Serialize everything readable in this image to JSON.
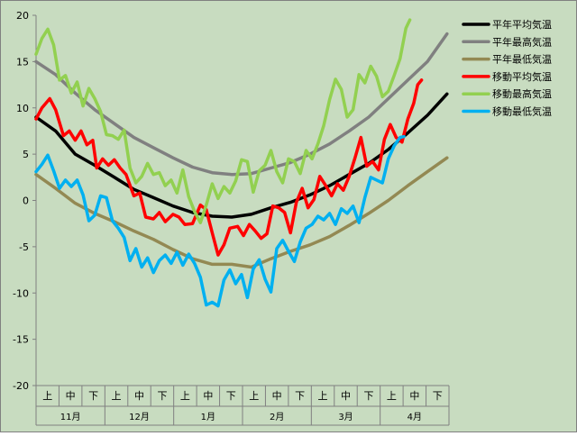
{
  "colors": {
    "page_bg": "#c8dcc0",
    "plot_bg": "#c8dcc0",
    "axis": "#808080"
  },
  "chart_data": {
    "type": "line",
    "title": "",
    "xlabel": "",
    "ylabel": "",
    "ylim": [
      -20,
      20
    ],
    "yticks": [
      -20,
      -15,
      -10,
      -5,
      0,
      5,
      10,
      15,
      20
    ],
    "grid": false,
    "legend_position": "right",
    "x_sub_labels": [
      "上",
      "中",
      "下",
      "上",
      "中",
      "下",
      "上",
      "中",
      "下",
      "上",
      "中",
      "下",
      "上",
      "中",
      "下",
      "上",
      "中",
      "下"
    ],
    "months": [
      "11月",
      "12月",
      "1月",
      "2月",
      "3月",
      "4月"
    ],
    "x_unit": "day index from Nov 1 (0-180)",
    "series": [
      {
        "name": "平年平均気温",
        "color": "#000000",
        "points": [
          [
            0,
            9
          ],
          [
            10,
            7.5
          ],
          [
            20,
            5
          ],
          [
            30,
            3.8
          ],
          [
            40,
            2.5
          ],
          [
            50,
            1.2
          ],
          [
            60,
            0.3
          ],
          [
            70,
            -0.6
          ],
          [
            80,
            -1.3
          ],
          [
            90,
            -1.7
          ],
          [
            100,
            -1.8
          ],
          [
            110,
            -1.5
          ],
          [
            120,
            -0.8
          ],
          [
            130,
            -0.2
          ],
          [
            140,
            0.6
          ],
          [
            150,
            1.6
          ],
          [
            160,
            2.8
          ],
          [
            170,
            4
          ],
          [
            180,
            5.5
          ],
          [
            190,
            7.3
          ],
          [
            200,
            9.2
          ],
          [
            210,
            11.5
          ]
        ]
      },
      {
        "name": "平年最高気温",
        "color": "#808080",
        "points": [
          [
            0,
            15
          ],
          [
            10,
            13.6
          ],
          [
            20,
            11.6
          ],
          [
            30,
            9.8
          ],
          [
            40,
            8.3
          ],
          [
            50,
            6.8
          ],
          [
            60,
            5.7
          ],
          [
            70,
            4.6
          ],
          [
            80,
            3.6
          ],
          [
            90,
            3
          ],
          [
            100,
            2.8
          ],
          [
            110,
            2.9
          ],
          [
            120,
            3.5
          ],
          [
            130,
            4.1
          ],
          [
            140,
            5
          ],
          [
            150,
            6.1
          ],
          [
            160,
            7.5
          ],
          [
            170,
            9
          ],
          [
            180,
            11
          ],
          [
            190,
            13
          ],
          [
            200,
            15
          ],
          [
            210,
            18
          ]
        ]
      },
      {
        "name": "平年最低気温",
        "color": "#938953",
        "points": [
          [
            0,
            2.8
          ],
          [
            10,
            1.3
          ],
          [
            20,
            -0.3
          ],
          [
            30,
            -1.4
          ],
          [
            40,
            -2.3
          ],
          [
            50,
            -3.3
          ],
          [
            60,
            -4.2
          ],
          [
            70,
            -5.3
          ],
          [
            80,
            -6.3
          ],
          [
            90,
            -6.9
          ],
          [
            100,
            -6.9
          ],
          [
            110,
            -7.2
          ],
          [
            120,
            -6.3
          ],
          [
            130,
            -5.5
          ],
          [
            140,
            -4.8
          ],
          [
            150,
            -3.9
          ],
          [
            160,
            -2.7
          ],
          [
            170,
            -1.4
          ],
          [
            180,
            0
          ],
          [
            190,
            1.6
          ],
          [
            200,
            3.1
          ],
          [
            210,
            4.6
          ]
        ]
      },
      {
        "name": "移動平均気温",
        "color": "#ff0000",
        "points": [
          [
            0,
            8.8
          ],
          [
            3,
            10
          ],
          [
            7,
            11
          ],
          [
            10,
            9.8
          ],
          [
            14,
            7
          ],
          [
            17,
            7.5
          ],
          [
            20,
            6.5
          ],
          [
            23,
            7.5
          ],
          [
            26,
            6
          ],
          [
            29,
            6.5
          ],
          [
            31,
            3.5
          ],
          [
            34,
            4.5
          ],
          [
            37,
            3.8
          ],
          [
            40,
            4.4
          ],
          [
            43,
            3.5
          ],
          [
            46,
            2.8
          ],
          [
            50,
            0.5
          ],
          [
            53,
            0.8
          ],
          [
            56,
            -1.8
          ],
          [
            60,
            -2
          ],
          [
            63,
            -1.3
          ],
          [
            66,
            -2.3
          ],
          [
            70,
            -1.5
          ],
          [
            73,
            -1.8
          ],
          [
            76,
            -2.6
          ],
          [
            80,
            -2.5
          ],
          [
            84,
            -0.5
          ],
          [
            87,
            -1
          ],
          [
            90,
            -3.5
          ],
          [
            93,
            -5.9
          ],
          [
            96,
            -4.8
          ],
          [
            99,
            -3
          ],
          [
            103,
            -2.8
          ],
          [
            106,
            -3.8
          ],
          [
            109,
            -2.6
          ],
          [
            112,
            -3.3
          ],
          [
            115,
            -4.1
          ],
          [
            118,
            -3.6
          ],
          [
            121,
            -0.6
          ],
          [
            124,
            -0.8
          ],
          [
            127,
            -1.3
          ],
          [
            130,
            -3.5
          ],
          [
            133,
            -0.2
          ],
          [
            136,
            1.3
          ],
          [
            139,
            -0.8
          ],
          [
            142,
            0.1
          ],
          [
            145,
            2.6
          ],
          [
            148,
            1.6
          ],
          [
            151,
            0.5
          ],
          [
            154,
            1.8
          ],
          [
            157,
            1.1
          ],
          [
            160,
            2.6
          ],
          [
            163,
            4.6
          ],
          [
            166,
            6.8
          ],
          [
            169,
            3.7
          ],
          [
            172,
            4.2
          ],
          [
            175,
            3.3
          ],
          [
            178,
            6.6
          ],
          [
            181,
            8.2
          ],
          [
            184,
            6.8
          ],
          [
            187,
            6.3
          ],
          [
            190,
            8.8
          ],
          [
            193,
            10.5
          ],
          [
            195,
            12.5
          ],
          [
            197,
            13
          ]
        ]
      },
      {
        "name": "移動最高気温",
        "color": "#92d050",
        "points": [
          [
            0,
            15.8
          ],
          [
            3,
            17.5
          ],
          [
            6,
            18.5
          ],
          [
            9,
            16.8
          ],
          [
            12,
            13
          ],
          [
            15,
            13.5
          ],
          [
            18,
            11.6
          ],
          [
            21,
            12.8
          ],
          [
            24,
            10.2
          ],
          [
            27,
            12.1
          ],
          [
            30,
            11
          ],
          [
            33,
            9.6
          ],
          [
            36,
            7.1
          ],
          [
            39,
            7
          ],
          [
            42,
            6.6
          ],
          [
            45,
            7.6
          ],
          [
            48,
            3.5
          ],
          [
            51,
            1.9
          ],
          [
            54,
            2.6
          ],
          [
            57,
            4
          ],
          [
            60,
            2.8
          ],
          [
            63,
            3
          ],
          [
            66,
            1.6
          ],
          [
            69,
            2.2
          ],
          [
            72,
            0.8
          ],
          [
            75,
            3.3
          ],
          [
            78,
            0.4
          ],
          [
            81,
            -1.2
          ],
          [
            84,
            -2.4
          ],
          [
            87,
            -0.5
          ],
          [
            90,
            1.8
          ],
          [
            93,
            0.2
          ],
          [
            96,
            1.5
          ],
          [
            99,
            0.8
          ],
          [
            102,
            2.1
          ],
          [
            105,
            4.4
          ],
          [
            108,
            4.2
          ],
          [
            111,
            0.9
          ],
          [
            114,
            3.2
          ],
          [
            117,
            3.8
          ],
          [
            120,
            5.4
          ],
          [
            123,
            3.1
          ],
          [
            126,
            1.9
          ],
          [
            129,
            4.5
          ],
          [
            132,
            4.2
          ],
          [
            135,
            2.9
          ],
          [
            138,
            5.4
          ],
          [
            141,
            4.5
          ],
          [
            144,
            6.1
          ],
          [
            147,
            8.1
          ],
          [
            150,
            10.9
          ],
          [
            153,
            13.1
          ],
          [
            156,
            12
          ],
          [
            159,
            9
          ],
          [
            162,
            9.8
          ],
          [
            165,
            13.6
          ],
          [
            168,
            12.7
          ],
          [
            171,
            14.5
          ],
          [
            174,
            13.4
          ],
          [
            177,
            11.2
          ],
          [
            180,
            11.8
          ],
          [
            183,
            13.5
          ],
          [
            186,
            15.3
          ],
          [
            189,
            18.6
          ],
          [
            191,
            19.5
          ]
        ]
      },
      {
        "name": "移動最低気温",
        "color": "#00b0f0",
        "points": [
          [
            0,
            3.1
          ],
          [
            3,
            3.9
          ],
          [
            6,
            4.9
          ],
          [
            9,
            3.2
          ],
          [
            12,
            1.3
          ],
          [
            15,
            2.2
          ],
          [
            18,
            1.5
          ],
          [
            21,
            2.2
          ],
          [
            24,
            0.6
          ],
          [
            27,
            -2.2
          ],
          [
            30,
            -1.6
          ],
          [
            33,
            0.5
          ],
          [
            36,
            0.3
          ],
          [
            39,
            -2.2
          ],
          [
            42,
            -3
          ],
          [
            45,
            -4
          ],
          [
            48,
            -6.5
          ],
          [
            51,
            -5.2
          ],
          [
            54,
            -7.2
          ],
          [
            57,
            -6.2
          ],
          [
            60,
            -7.8
          ],
          [
            63,
            -6.5
          ],
          [
            66,
            -5.9
          ],
          [
            69,
            -6.8
          ],
          [
            72,
            -5.6
          ],
          [
            75,
            -7
          ],
          [
            78,
            -5.8
          ],
          [
            81,
            -6.8
          ],
          [
            84,
            -8.3
          ],
          [
            87,
            -11.3
          ],
          [
            90,
            -11
          ],
          [
            93,
            -11.4
          ],
          [
            96,
            -8.6
          ],
          [
            99,
            -7.5
          ],
          [
            102,
            -9
          ],
          [
            105,
            -8
          ],
          [
            108,
            -10.5
          ],
          [
            111,
            -7.4
          ],
          [
            114,
            -6.4
          ],
          [
            117,
            -8.5
          ],
          [
            120,
            -9.9
          ],
          [
            123,
            -5.2
          ],
          [
            126,
            -4.3
          ],
          [
            129,
            -5.5
          ],
          [
            132,
            -6.6
          ],
          [
            135,
            -4.5
          ],
          [
            138,
            -3
          ],
          [
            141,
            -2.6
          ],
          [
            144,
            -1.7
          ],
          [
            147,
            -2.1
          ],
          [
            150,
            -1.4
          ],
          [
            153,
            -2.6
          ],
          [
            156,
            -0.9
          ],
          [
            159,
            -1.4
          ],
          [
            162,
            -0.6
          ],
          [
            165,
            -2.4
          ],
          [
            168,
            0.3
          ],
          [
            171,
            2.5
          ],
          [
            174,
            2.2
          ],
          [
            177,
            1.9
          ],
          [
            180,
            4.5
          ],
          [
            183,
            5.9
          ],
          [
            186,
            6.8
          ],
          [
            188,
            6.9
          ]
        ]
      }
    ]
  }
}
